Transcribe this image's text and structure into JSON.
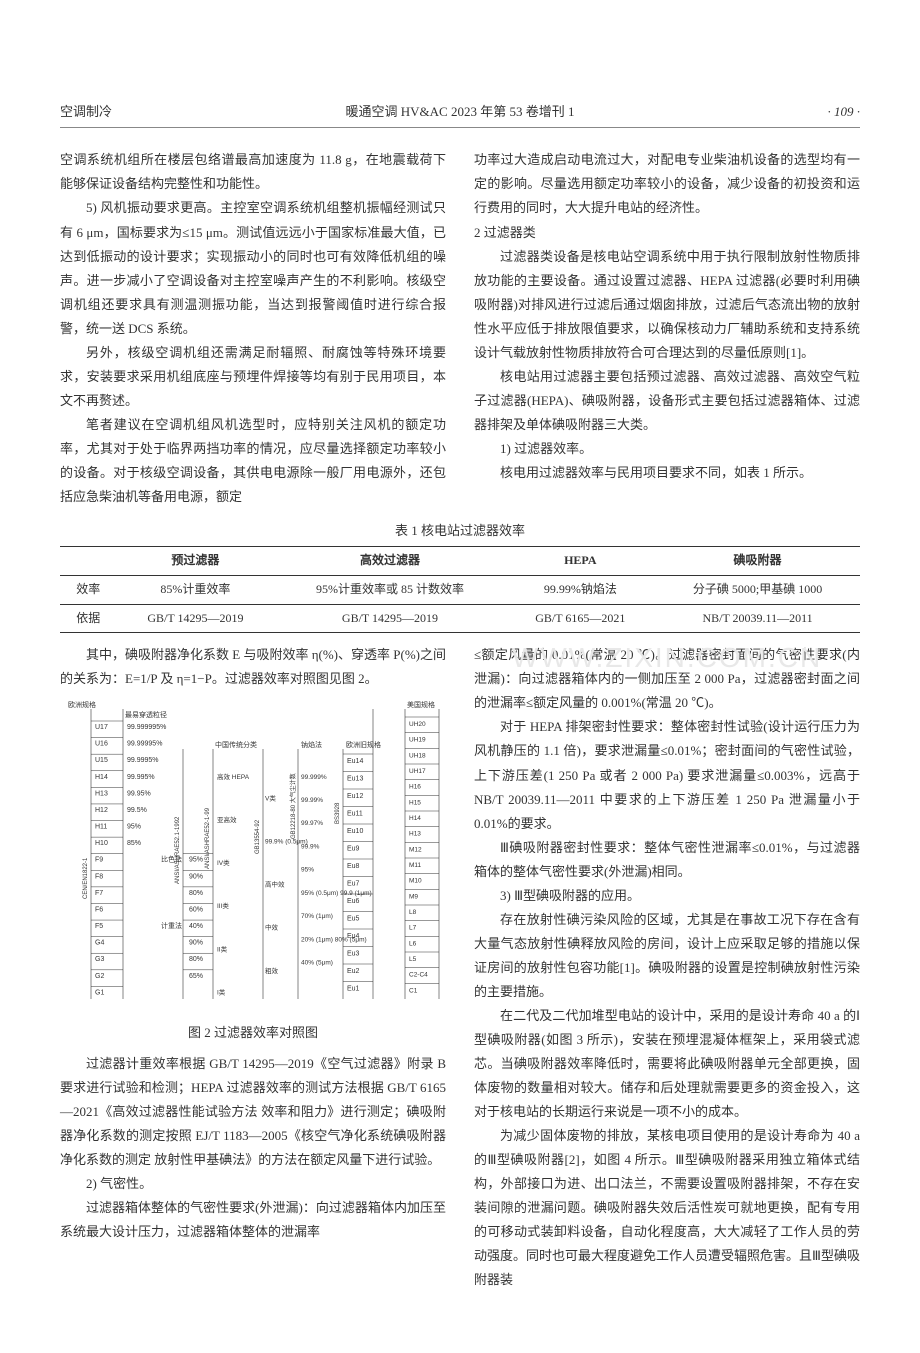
{
  "header": {
    "left": "空调制冷",
    "center": "暖通空调 HV&AC 2023 年第 53 卷增刊 1",
    "right": "· 109 ·"
  },
  "left_col": {
    "p1": "空调系统机组所在楼层包络谱最高加速度为 11.8 g，在地震载荷下能够保证设备结构完整性和功能性。",
    "p2": "5) 风机振动要求更高。主控室空调系统机组整机振幅经测试只有 6 μm，国标要求为≤15 μm。测试值远远小于国家标准最大值，已达到低振动的设计要求；实现振动小的同时也可有效降低机组的噪声。进一步减小了空调设备对主控室噪声产生的不利影响。核级空调机组还要求具有测温测振功能，当达到报警阈值时进行综合报警，统一送 DCS 系统。",
    "p3": "另外，核级空调机组还需满足耐辐照、耐腐蚀等特殊环境要求，安装要求采用机组底座与预埋件焊接等均有别于民用项目，本文不再赘述。",
    "p4": "笔者建议在空调机组风机选型时，应特别关注风机的额定功率，尤其对于处于临界两挡功率的情况，应尽量选择额定功率较小的设备。对于核级空调设备，其供电电源除一般厂用电源外，还包括应急柴油机等备用电源，额定"
  },
  "right_col": {
    "p1": "功率过大造成启动电流过大，对配电专业柴油机设备的选型均有一定的影响。尽量选用额定功率较小的设备，减少设备的初投资和运行费用的同时，大大提升电站的经济性。",
    "p2_head": "2 过滤器类",
    "p3": "过滤器类设备是核电站空调系统中用于执行限制放射性物质排放功能的主要设备。通过设置过滤器、HEPA 过滤器(必要时利用碘吸附器)对排风进行过滤后通过烟囱排放，过滤后气态流出物的放射性水平应低于排放限值要求，以确保核动力厂辅助系统和支持系统设计气载放射性物质排放符合可合理达到的尽量低原则[1]。",
    "p4": "核电站用过滤器主要包括预过滤器、高效过滤器、高效空气粒子过滤器(HEPA)、碘吸附器，设备形式主要包括过滤器箱体、过滤器排架及单体碘吸附器三大类。",
    "p5": "1) 过滤器效率。",
    "p6": "核电用过滤器效率与民用项目要求不同，如表 1 所示。"
  },
  "table": {
    "title": "表 1 核电站过滤器效率",
    "columns": [
      "",
      "预过滤器",
      "高效过滤器",
      "HEPA",
      "碘吸附器"
    ],
    "rows": [
      [
        "效率",
        "85%计重效率",
        "95%计重效率或 85 计数效率",
        "99.99%钠焰法",
        "分子碘 5000;甲基碘 1000"
      ],
      [
        "依据",
        "GB/T 14295—2019",
        "GB/T 14295—2019",
        "GB/T 6165—2021",
        "NB/T 20039.11—2011"
      ]
    ],
    "border_color": "#333333",
    "font_size": 12
  },
  "lower_left": {
    "p1": "其中，碘吸附器净化系数 E 与吸附效率 η(%)、穿透率 P(%)之间的关系为：E=1/P 及 η=1−P。过滤器效率对照图见图 2。",
    "chart_caption": "图 2 过滤器效率对照图",
    "p2": "过滤器计重效率根据 GB/T 14295—2019《空气过滤器》附录 B 要求进行试验和检测；HEPA 过滤器效率的测试方法根据 GB/T 6165—2021《高效过滤器性能试验方法 效率和阻力》进行测定；碘吸附器净化系数的测定按照 EJ/T 1183—2005《核空气净化系统碘吸附器净化系数的测定 放射性甲基碘法》的方法在额定风量下进行试验。",
    "p3": "2) 气密性。",
    "p4": "过滤器箱体整体的气密性要求(外泄漏)：向过滤器箱体内加压至系统最大设计压力，过滤器箱体整体的泄漏率"
  },
  "lower_right": {
    "p1": "≤额定风量的 0.01%(常温 20 ℃)。过滤器密封面间的气密性要求(内泄漏)：向过滤器箱体内的一侧加压至 2 000 Pa，过滤器密封面之间的泄漏率≤额定风量的 0.001%(常温 20 ℃)。",
    "p2": "对于 HEPA 排架密封性要求：整体密封性试验(设计运行压力为风机静压的 1.1 倍)，要求泄漏量≤0.01%；密封面间的气密性试验，上下游压差(1 250 Pa 或者 2 000 Pa) 要求泄漏量≤0.003%，远高于 NB/T 20039.11—2011 中要求的上下游压差 1 250 Pa 泄漏量小于 0.01%的要求。",
    "p3": "Ⅲ碘吸附器密封性要求：整体气密性泄漏率≤0.01%，与过滤器箱体的整体气密性要求(外泄漏)相同。",
    "p4": "3) Ⅲ型碘吸附器的应用。",
    "p5": "存在放射性碘污染风险的区域，尤其是在事故工况下存在含有大量气态放射性碘释放风险的房间，设计上应采取足够的措施以保证房间的放射性包容功能[1]。碘吸附器的设置是控制碘放射性污染的主要措施。",
    "p6": "在二代及二代加堆型电站的设计中，采用的是设计寿命 40 a 的Ⅰ型碘吸附器(如图 3 所示)，安装在预埋混凝体框架上，采用袋式滤芯。当碘吸附器效率降低时，需要将此碘吸附器单元全部更换，固体废物的数量相对较大。储存和后处理就需要更多的资金投入，这对于核电站的长期运行来说是一项不小的成本。",
    "p7": "为减少固体废物的排放，某核电项目使用的是设计寿命为 40 a 的Ⅲ型碘吸附器[2]，如图 4 所示。Ⅲ型碘吸附器采用独立箱体式结构，外部接口为进、出口法兰，不需要设置吸附器排架，不存在安装间隙的泄漏问题。碘吸附器失效后活性炭可就地更换，配有专用的可移动式装卸料设备，自动化程度高，大大减轻了工作人员的劳动强度。同时也可最大程度避免工作人员遭受辐照危害。且Ⅲ型碘吸附器装"
  },
  "watermark": "WWW.ZIXIN.COM.CN",
  "chart": {
    "left_labels": [
      "U17",
      "U16",
      "U15",
      "H14",
      "H13",
      "H12",
      "H11",
      "H10",
      "F9",
      "F8",
      "F7",
      "F6",
      "F5",
      "G4",
      "G3",
      "G2",
      "G1"
    ],
    "right_labels": [
      "UH20",
      "UH19",
      "UH18",
      "UH17",
      "H16",
      "H15",
      "H14",
      "H13",
      "M12",
      "M11",
      "M10",
      "M9",
      "L8",
      "L7",
      "L6",
      "L5",
      "C2-C4",
      "C1"
    ],
    "eu_labels": [
      "Eu14",
      "Eu13",
      "Eu12",
      "Eu11",
      "Eu10",
      "Eu9",
      "Eu8",
      "Eu7",
      "Eu6",
      "Eu5",
      "Eu4",
      "Eu3",
      "Eu2",
      "Eu1"
    ],
    "col_headers_top_left": "欧洲规格",
    "col_headers_top_mid1": "最易穿透粒径",
    "col_headers_top_mid2": "中国传统分类",
    "col_headers_top_mid3": "钠焰法",
    "col_headers_top_right1": "欧洲旧规格",
    "col_headers_top_right2": "美国规格",
    "eff_labels_left": [
      "99.999995%",
      "99.99995%",
      "99.9995%",
      "99.995%",
      "99.95%",
      "99.5%",
      "95%",
      "85%"
    ],
    "method_labels": [
      "比色法",
      "计重法"
    ],
    "pct_labels": [
      "95%",
      "90%",
      "80%",
      "60%",
      "40%",
      "90%",
      "80%",
      "65%"
    ],
    "class_labels": [
      "高效 HEPA",
      "V类",
      "亚高效",
      "99.9% (0.5μm)",
      "IV类",
      "高中效",
      "III类",
      "中效",
      "II类",
      "粗效",
      "I类"
    ],
    "pct_right": [
      "99.999%",
      "99.99%",
      "99.97%",
      "99.9%",
      "95%",
      "95% (0.5μm) 99.9 (1μm)",
      "70% (1μm)",
      "20% (1μm) 80% (5μm)",
      "40% (5μm)"
    ],
    "std_labels": [
      "CEN/EN1822-1",
      "ANSI/ASHRAE52.1-1992",
      "ANSI/ASHRAE52-1-99",
      "GB13554-92",
      "GB12218-80 大气尘计数",
      "BS3928",
      "GB6165-85",
      "GB13554-92"
    ],
    "colors": {
      "line": "#333333",
      "text": "#333333",
      "bg": "#ffffff"
    },
    "font_size": 7
  }
}
